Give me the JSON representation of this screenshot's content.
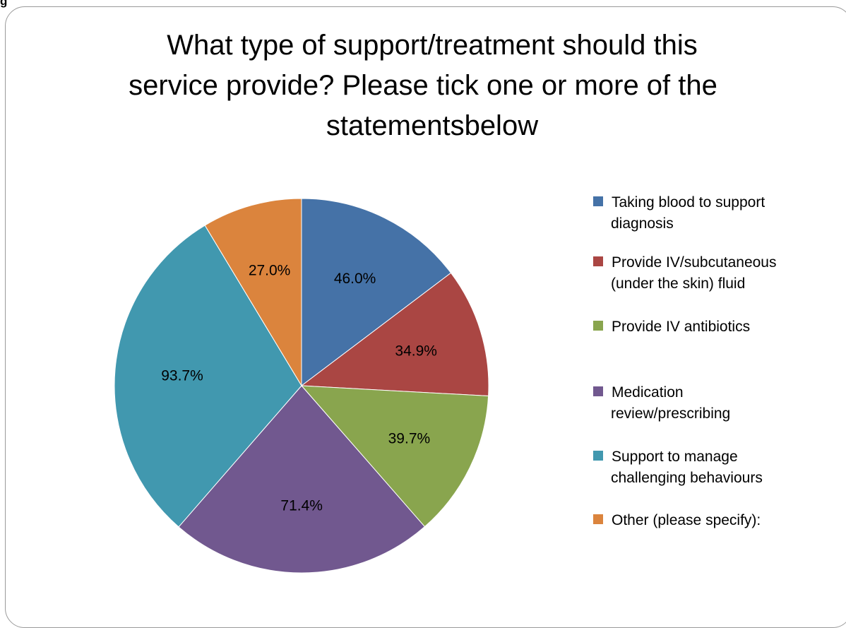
{
  "corner_fragment": "g",
  "chart_data": {
    "type": "pie",
    "title": "What type of support/treatment should this service provide? Please tick one or more of the statementsbelow",
    "title_lines": [
      "What type of support/treatment should this",
      "service provide? Please tick one or more of the",
      "statementsbelow"
    ],
    "legend_position": "right",
    "slices": [
      {
        "name": "Taking blood to support diagnosis",
        "legend_lines": [
          "Taking blood to support",
          "diagnosis"
        ],
        "value": 46.0,
        "label": "46.0%",
        "color": "#4572A7"
      },
      {
        "name": "Provide IV/subcutaneous (under the skin) fluid",
        "legend_lines": [
          "Provide IV/subcutaneous",
          "(under the skin) fluid"
        ],
        "value": 34.9,
        "label": "34.9%",
        "color": "#AA4643"
      },
      {
        "name": "Provide IV antibiotics",
        "legend_lines": [
          "Provide IV antibiotics"
        ],
        "value": 39.7,
        "label": "39.7%",
        "color": "#89A54E"
      },
      {
        "name": "Medication review/prescribing",
        "legend_lines": [
          "Medication",
          "review/prescribing"
        ],
        "value": 71.4,
        "label": "71.4%",
        "color": "#71588F"
      },
      {
        "name": "Support to manage challenging behaviours",
        "legend_lines": [
          "Support to manage",
          "challenging behaviours"
        ],
        "value": 93.7,
        "label": "93.7%",
        "color": "#4198AF"
      },
      {
        "name": "Other (please specify):",
        "legend_lines": [
          "Other (please specify):"
        ],
        "value": 27.0,
        "label": "27.0%",
        "color": "#DB843D"
      }
    ]
  }
}
